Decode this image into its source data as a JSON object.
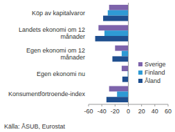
{
  "chart_data": {
    "type": "bar",
    "orientation": "horizontal",
    "categories": [
      "Köp av kapitalvaror",
      "Landets ekonomi om 12 månader",
      "Egen ekonomi om 12 månader",
      "Egen ekonomi nu",
      "Konsumentförtroende-index"
    ],
    "series": [
      {
        "name": "Sverige",
        "color": "#7d63ab",
        "values": [
          -29,
          -45,
          -20,
          -10,
          -29
        ]
      },
      {
        "name": "Finland",
        "color": "#2f9ad4",
        "values": [
          -31,
          -36,
          -10,
          -1,
          -17
        ]
      },
      {
        "name": "Åland",
        "color": "#1f4f8f",
        "values": [
          -38,
          -50,
          -24,
          -9,
          -33
        ]
      }
    ],
    "xlim": [
      -60,
      60
    ],
    "xticks": [
      -60,
      -40,
      -20,
      0,
      20,
      40,
      60
    ],
    "grid": false,
    "legend": "right",
    "source": "Källa: ÅSUB, Eurostat"
  }
}
